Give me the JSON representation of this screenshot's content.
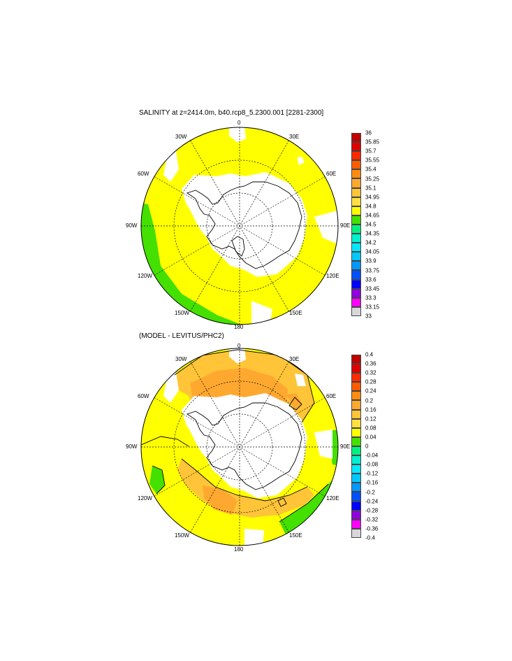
{
  "panel1": {
    "title": "SALINITY at z=2414.0m, b40.rcp8_5.2300.001 [2281-2300]",
    "colorbar_labels": [
      "36",
      "35.85",
      "35.7",
      "35.55",
      "35.4",
      "35.25",
      "35.1",
      "34.95",
      "34.8",
      "34.65",
      "34.5",
      "34.35",
      "34.2",
      "34.05",
      "33.9",
      "33.75",
      "33.6",
      "33.45",
      "33.3",
      "33.15",
      "33"
    ]
  },
  "panel2": {
    "title": "(MODEL - LEVITUS/PHC2)",
    "colorbar_labels": [
      "0.4",
      "0.36",
      "0.32",
      "0.28",
      "0.24",
      "0.2",
      "0.16",
      "0.12",
      "0.08",
      "0.04",
      "0",
      "-0.04",
      "-0.08",
      "-0.12",
      "-0.16",
      "-0.2",
      "-0.24",
      "-0.28",
      "-0.32",
      "-0.36",
      "-0.4"
    ]
  },
  "lon_labels": {
    "top": "0",
    "right30": "30E",
    "right60": "60E",
    "right90": "90E",
    "right120": "120E",
    "right150": "150E",
    "bottom": "180",
    "left150": "150W",
    "left120": "120W",
    "left90": "90W",
    "left60": "60W",
    "left30": "30W"
  },
  "colors": {
    "scale": [
      "#c00000",
      "#dd0000",
      "#ff2a00",
      "#ff5c00",
      "#ff8c10",
      "#ffa830",
      "#ffc438",
      "#ffe040",
      "#ffff00",
      "#44e000",
      "#00f080",
      "#00f0d0",
      "#00e8ff",
      "#00c8ff",
      "#0098ff",
      "#0050ff",
      "#0000ff",
      "#9000e0",
      "#ff00ff",
      "#d8d8d8",
      "#707070"
    ],
    "land": "#ffffff",
    "yellow": "#ffff00",
    "green": "#44e000",
    "orange": "#ffc438",
    "darkorange": "#ffa830"
  }
}
